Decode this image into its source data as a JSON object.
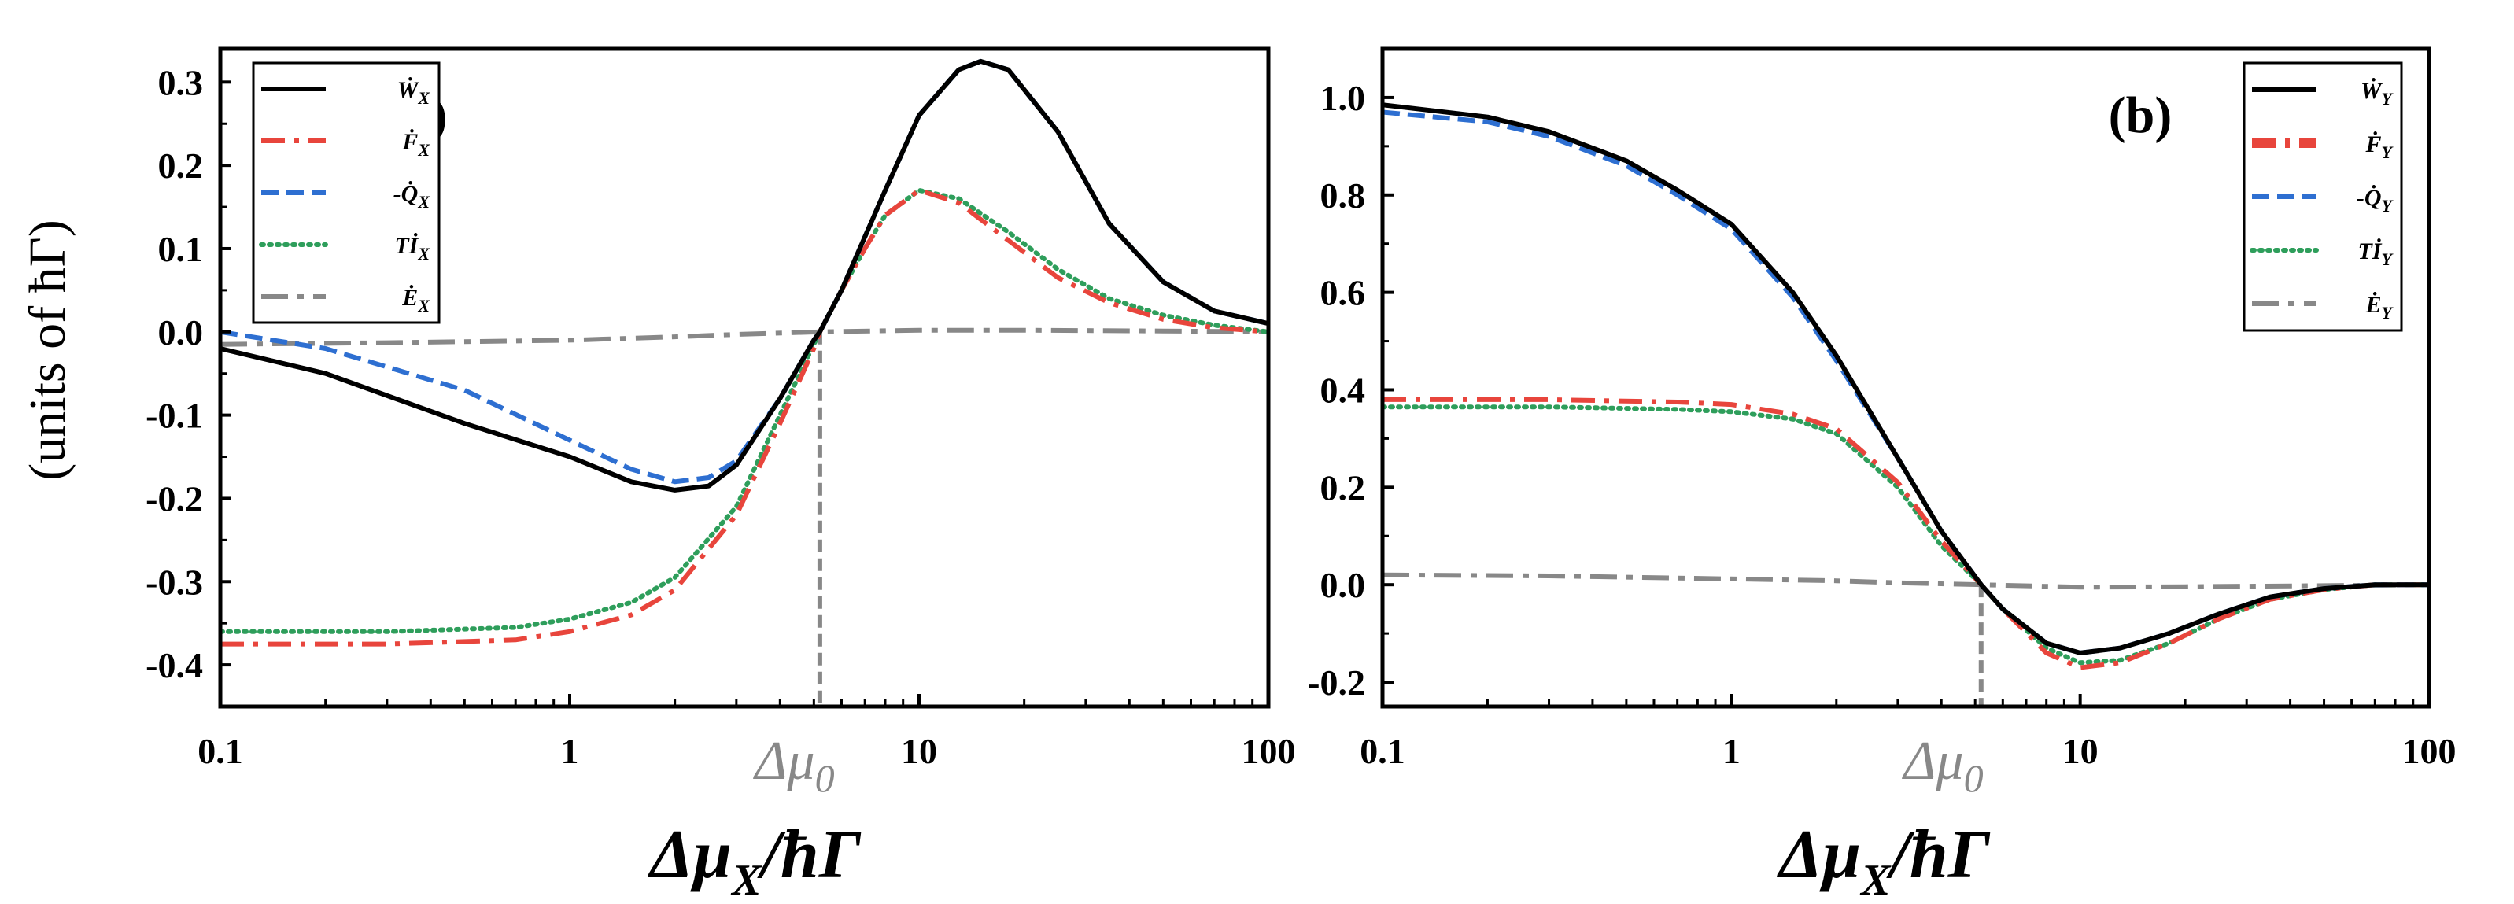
{
  "figure": {
    "ylabel": "(units of ħΓ)",
    "xlabel_main": "Δμ",
    "xlabel_sub": "X",
    "xlabel_tail": "/ħΓ",
    "mu0_main": "Δμ",
    "mu0_sub": "0"
  },
  "chart_data": [
    {
      "type": "line",
      "panel_label": "(a)",
      "x_scale": "log",
      "xlim": [
        0.1,
        100
      ],
      "ylim": [
        -0.45,
        0.34
      ],
      "x_ticks": [
        0.1,
        1,
        10,
        100
      ],
      "x_tick_labels": [
        "0.1",
        "1",
        "10",
        "100"
      ],
      "y_ticks": [
        -0.4,
        -0.3,
        -0.2,
        -0.1,
        0.0,
        0.1,
        0.2,
        0.3
      ],
      "y_tick_labels": [
        "-0.4",
        "-0.3",
        "-0.2",
        "-0.1",
        "0.0",
        "0.1",
        "0.2",
        "0.3"
      ],
      "legend_position": "top-left",
      "marker_x": 5.2,
      "series": [
        {
          "name": "Ẇ_X",
          "label_main": "Ẇ",
          "label_sub": "X",
          "color": "#000000",
          "dash": "solid",
          "points": [
            [
              0.1,
              -0.02
            ],
            [
              0.2,
              -0.05
            ],
            [
              0.5,
              -0.11
            ],
            [
              1,
              -0.15
            ],
            [
              1.5,
              -0.18
            ],
            [
              2,
              -0.19
            ],
            [
              2.5,
              -0.185
            ],
            [
              3,
              -0.16
            ],
            [
              4,
              -0.08
            ],
            [
              5,
              -0.01
            ],
            [
              5.2,
              0.0
            ],
            [
              6,
              0.05
            ],
            [
              8,
              0.17
            ],
            [
              10,
              0.26
            ],
            [
              13,
              0.315
            ],
            [
              15,
              0.325
            ],
            [
              18,
              0.315
            ],
            [
              25,
              0.24
            ],
            [
              35,
              0.13
            ],
            [
              50,
              0.06
            ],
            [
              70,
              0.025
            ],
            [
              100,
              0.01
            ]
          ]
        },
        {
          "name": "Ḟ_X",
          "label_main": "Ḟ",
          "label_sub": "X",
          "color": "#e8453c",
          "dash": "dashdot",
          "points": [
            [
              0.1,
              -0.375
            ],
            [
              0.3,
              -0.375
            ],
            [
              0.7,
              -0.37
            ],
            [
              1,
              -0.36
            ],
            [
              1.5,
              -0.34
            ],
            [
              2,
              -0.31
            ],
            [
              3,
              -0.22
            ],
            [
              4,
              -0.11
            ],
            [
              5,
              -0.02
            ],
            [
              5.2,
              0.0
            ],
            [
              6,
              0.05
            ],
            [
              7,
              0.1
            ],
            [
              8,
              0.14
            ],
            [
              10,
              0.17
            ],
            [
              13,
              0.155
            ],
            [
              18,
              0.11
            ],
            [
              25,
              0.065
            ],
            [
              35,
              0.035
            ],
            [
              50,
              0.015
            ],
            [
              70,
              0.005
            ],
            [
              100,
              0.0
            ]
          ]
        },
        {
          "name": "-Q̇_X",
          "label_main": "-Q̇",
          "label_sub": "X",
          "color": "#2e6fd1",
          "dash": "dashed",
          "points": [
            [
              0.1,
              0.0
            ],
            [
              0.2,
              -0.02
            ],
            [
              0.5,
              -0.07
            ],
            [
              1,
              -0.13
            ],
            [
              1.5,
              -0.165
            ],
            [
              2,
              -0.18
            ],
            [
              2.5,
              -0.175
            ],
            [
              3,
              -0.155
            ],
            [
              4,
              -0.08
            ],
            [
              5,
              -0.01
            ],
            [
              5.2,
              0.0
            ],
            [
              6,
              0.05
            ],
            [
              8,
              0.17
            ],
            [
              10,
              0.26
            ],
            [
              13,
              0.315
            ],
            [
              15,
              0.325
            ],
            [
              18,
              0.315
            ],
            [
              25,
              0.24
            ],
            [
              35,
              0.13
            ],
            [
              50,
              0.06
            ],
            [
              70,
              0.025
            ],
            [
              100,
              0.01
            ]
          ]
        },
        {
          "name": "Tİ_X",
          "label_main": "Tİ",
          "label_sub": "X",
          "color": "#2e9e5b",
          "dash": "dotted",
          "points": [
            [
              0.1,
              -0.36
            ],
            [
              0.3,
              -0.36
            ],
            [
              0.7,
              -0.355
            ],
            [
              1,
              -0.345
            ],
            [
              1.5,
              -0.325
            ],
            [
              2,
              -0.295
            ],
            [
              3,
              -0.21
            ],
            [
              4,
              -0.1
            ],
            [
              5,
              -0.015
            ],
            [
              5.2,
              0.0
            ],
            [
              6,
              0.05
            ],
            [
              7,
              0.1
            ],
            [
              8,
              0.14
            ],
            [
              10,
              0.17
            ],
            [
              13,
              0.16
            ],
            [
              18,
              0.12
            ],
            [
              25,
              0.075
            ],
            [
              35,
              0.04
            ],
            [
              50,
              0.02
            ],
            [
              70,
              0.008
            ],
            [
              100,
              0.0
            ]
          ]
        },
        {
          "name": "Ė_X",
          "label_main": "Ė",
          "label_sub": "X",
          "color": "#888888",
          "dash": "longdashdot",
          "points": [
            [
              0.1,
              -0.015
            ],
            [
              0.3,
              -0.013
            ],
            [
              1,
              -0.01
            ],
            [
              2,
              -0.006
            ],
            [
              3,
              -0.003
            ],
            [
              5.2,
              0.0
            ],
            [
              10,
              0.002
            ],
            [
              20,
              0.002
            ],
            [
              50,
              0.001
            ],
            [
              100,
              0.0
            ]
          ]
        }
      ]
    },
    {
      "type": "line",
      "panel_label": "(b)",
      "x_scale": "log",
      "xlim": [
        0.1,
        100
      ],
      "ylim": [
        -0.25,
        1.1
      ],
      "x_ticks": [
        0.1,
        1,
        10,
        100
      ],
      "x_tick_labels": [
        "0.1",
        "1",
        "10",
        "100"
      ],
      "y_ticks": [
        -0.2,
        0.0,
        0.2,
        0.4,
        0.6,
        0.8,
        1.0
      ],
      "y_tick_labels": [
        "-0.2",
        "0.0",
        "0.2",
        "0.4",
        "0.6",
        "0.8",
        "1.0"
      ],
      "legend_position": "top-right",
      "marker_x": 5.2,
      "series": [
        {
          "name": "Ẇ_Y",
          "label_main": "Ẇ",
          "label_sub": "Y",
          "color": "#000000",
          "dash": "solid",
          "points": [
            [
              0.1,
              0.985
            ],
            [
              0.2,
              0.96
            ],
            [
              0.3,
              0.93
            ],
            [
              0.5,
              0.87
            ],
            [
              0.7,
              0.81
            ],
            [
              1,
              0.74
            ],
            [
              1.5,
              0.6
            ],
            [
              2,
              0.47
            ],
            [
              3,
              0.26
            ],
            [
              4,
              0.11
            ],
            [
              5.2,
              0.0
            ],
            [
              6,
              -0.05
            ],
            [
              8,
              -0.12
            ],
            [
              10,
              -0.14
            ],
            [
              13,
              -0.13
            ],
            [
              18,
              -0.1
            ],
            [
              25,
              -0.06
            ],
            [
              35,
              -0.025
            ],
            [
              50,
              -0.008
            ],
            [
              70,
              0.0
            ],
            [
              100,
              0.0
            ]
          ]
        },
        {
          "name": "Ḟ_Y",
          "label_main": "Ḟ",
          "label_sub": "Y",
          "color": "#e8453c",
          "dash": "dashdot",
          "points": [
            [
              0.1,
              0.38
            ],
            [
              0.3,
              0.38
            ],
            [
              0.7,
              0.375
            ],
            [
              1,
              0.37
            ],
            [
              1.5,
              0.35
            ],
            [
              2,
              0.32
            ],
            [
              3,
              0.21
            ],
            [
              4,
              0.09
            ],
            [
              5.2,
              0.0
            ],
            [
              6,
              -0.05
            ],
            [
              8,
              -0.14
            ],
            [
              10,
              -0.17
            ],
            [
              13,
              -0.16
            ],
            [
              18,
              -0.12
            ],
            [
              25,
              -0.07
            ],
            [
              35,
              -0.03
            ],
            [
              50,
              -0.01
            ],
            [
              70,
              0.0
            ],
            [
              100,
              0.0
            ]
          ]
        },
        {
          "name": "-Q̇_Y",
          "label_main": "-Q̇",
          "label_sub": "Y",
          "color": "#2e6fd1",
          "dash": "dashed",
          "points": [
            [
              0.1,
              0.97
            ],
            [
              0.2,
              0.95
            ],
            [
              0.3,
              0.92
            ],
            [
              0.5,
              0.86
            ],
            [
              0.7,
              0.8
            ],
            [
              1,
              0.73
            ],
            [
              1.5,
              0.59
            ],
            [
              2,
              0.46
            ],
            [
              3,
              0.26
            ],
            [
              4,
              0.11
            ],
            [
              5.2,
              0.0
            ],
            [
              6,
              -0.05
            ],
            [
              8,
              -0.12
            ],
            [
              10,
              -0.14
            ],
            [
              13,
              -0.13
            ],
            [
              18,
              -0.1
            ],
            [
              25,
              -0.06
            ],
            [
              35,
              -0.025
            ],
            [
              50,
              -0.008
            ],
            [
              70,
              0.0
            ],
            [
              100,
              0.0
            ]
          ]
        },
        {
          "name": "Tİ_Y",
          "label_main": "Tİ",
          "label_sub": "Y",
          "color": "#2e9e5b",
          "dash": "dotted",
          "points": [
            [
              0.1,
              0.365
            ],
            [
              0.3,
              0.365
            ],
            [
              0.7,
              0.36
            ],
            [
              1,
              0.355
            ],
            [
              1.5,
              0.34
            ],
            [
              2,
              0.31
            ],
            [
              3,
              0.2
            ],
            [
              4,
              0.08
            ],
            [
              5.2,
              0.0
            ],
            [
              6,
              -0.05
            ],
            [
              8,
              -0.13
            ],
            [
              10,
              -0.16
            ],
            [
              13,
              -0.155
            ],
            [
              18,
              -0.12
            ],
            [
              25,
              -0.07
            ],
            [
              35,
              -0.03
            ],
            [
              50,
              -0.01
            ],
            [
              70,
              0.0
            ],
            [
              100,
              0.0
            ]
          ]
        },
        {
          "name": "Ė_Y",
          "label_main": "Ė",
          "label_sub": "Y",
          "color": "#888888",
          "dash": "longdashdot",
          "points": [
            [
              0.1,
              0.02
            ],
            [
              0.3,
              0.018
            ],
            [
              1,
              0.012
            ],
            [
              2,
              0.008
            ],
            [
              3,
              0.004
            ],
            [
              5.2,
              0.0
            ],
            [
              10,
              -0.005
            ],
            [
              20,
              -0.004
            ],
            [
              50,
              -0.002
            ],
            [
              100,
              0.0
            ]
          ]
        }
      ]
    }
  ]
}
